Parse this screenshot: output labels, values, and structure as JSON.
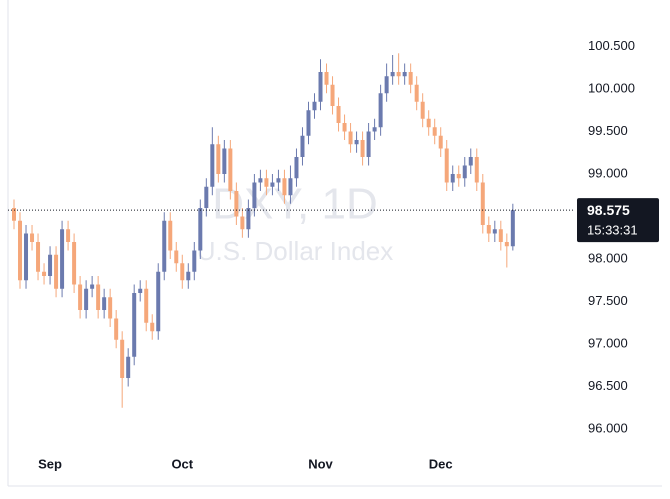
{
  "chart_data": {
    "type": "candlestick",
    "watermark_title": "DXY, 1D",
    "watermark_subtitle": "U.S. Dollar Index",
    "categories": [
      null,
      null,
      null,
      null,
      null,
      null,
      "Sep",
      null,
      null,
      null,
      null,
      null,
      null,
      null,
      null,
      null,
      null,
      null,
      null,
      null,
      null,
      null,
      null,
      null,
      null,
      null,
      null,
      null,
      "Oct",
      null,
      null,
      null,
      null,
      null,
      null,
      null,
      null,
      null,
      null,
      null,
      null,
      null,
      null,
      null,
      null,
      null,
      null,
      null,
      null,
      null,
      null,
      "Nov",
      null,
      null,
      null,
      null,
      null,
      null,
      null,
      null,
      null,
      null,
      null,
      null,
      null,
      null,
      null,
      null,
      null,
      null,
      null,
      "Dec",
      null,
      null,
      null,
      null,
      null,
      null,
      null,
      null,
      null,
      null,
      null,
      null
    ],
    "open": [
      98.6,
      98.45,
      97.75,
      98.3,
      98.2,
      97.85,
      97.8,
      98.05,
      97.65,
      98.35,
      98.2,
      97.7,
      97.4,
      97.65,
      97.7,
      97.4,
      97.55,
      97.3,
      97.05,
      96.6,
      96.85,
      97.6,
      97.65,
      97.25,
      97.15,
      97.85,
      98.45,
      98.1,
      97.95,
      97.75,
      97.85,
      98.1,
      98.6,
      98.85,
      99.35,
      99.0,
      99.3,
      98.8,
      98.5,
      98.35,
      98.6,
      98.9,
      98.95,
      98.85,
      98.9,
      98.95,
      98.75,
      98.95,
      99.2,
      99.45,
      99.75,
      99.85,
      100.2,
      100.05,
      99.8,
      99.6,
      99.5,
      99.35,
      99.4,
      99.2,
      99.5,
      99.55,
      99.95,
      100.15,
      100.2,
      100.15,
      100.2,
      100.05,
      99.85,
      99.65,
      99.55,
      99.45,
      99.3,
      98.9,
      99.0,
      98.95,
      99.1,
      99.2,
      98.9,
      98.4,
      98.3,
      98.35,
      98.2,
      98.15
    ],
    "high": [
      98.7,
      98.55,
      98.4,
      98.4,
      98.3,
      97.95,
      98.15,
      98.15,
      98.45,
      98.45,
      98.3,
      97.8,
      97.75,
      97.8,
      97.8,
      97.65,
      97.65,
      97.4,
      97.15,
      96.95,
      97.7,
      97.75,
      97.75,
      97.35,
      97.95,
      98.55,
      98.55,
      98.2,
      98.05,
      97.95,
      98.2,
      98.7,
      98.95,
      99.55,
      99.45,
      99.4,
      99.4,
      98.9,
      98.6,
      98.7,
      99.0,
      99.05,
      99.05,
      99.0,
      99.05,
      99.05,
      99.1,
      99.3,
      99.55,
      99.85,
      99.95,
      100.35,
      100.3,
      100.15,
      99.9,
      99.7,
      99.6,
      99.5,
      99.5,
      99.6,
      99.65,
      100.05,
      100.3,
      100.4,
      100.42,
      100.3,
      100.3,
      100.15,
      99.95,
      99.75,
      99.65,
      99.55,
      99.4,
      99.1,
      99.1,
      99.2,
      99.3,
      99.3,
      99.0,
      98.5,
      98.45,
      98.45,
      98.3,
      98.65
    ],
    "low": [
      98.35,
      97.65,
      97.65,
      98.1,
      97.75,
      97.7,
      97.7,
      97.55,
      97.55,
      98.1,
      97.6,
      97.3,
      97.3,
      97.55,
      97.3,
      97.3,
      97.2,
      96.95,
      96.25,
      96.5,
      96.75,
      97.5,
      97.15,
      97.05,
      97.05,
      97.75,
      98.0,
      97.85,
      97.65,
      97.65,
      97.75,
      98.0,
      98.5,
      98.75,
      98.9,
      98.9,
      98.7,
      98.4,
      98.25,
      98.25,
      98.5,
      98.8,
      98.75,
      98.75,
      98.8,
      98.65,
      98.65,
      98.85,
      99.1,
      99.35,
      99.65,
      99.75,
      99.95,
      99.7,
      99.5,
      99.4,
      99.25,
      99.25,
      99.1,
      99.1,
      99.4,
      99.45,
      99.85,
      100.05,
      100.05,
      100.05,
      99.95,
      99.75,
      99.55,
      99.45,
      99.35,
      99.2,
      98.8,
      98.8,
      98.85,
      98.85,
      99.0,
      98.8,
      98.3,
      98.2,
      98.2,
      98.1,
      97.9,
      98.1
    ],
    "close": [
      98.45,
      97.75,
      98.3,
      98.2,
      97.85,
      97.8,
      98.05,
      97.65,
      98.35,
      98.2,
      97.7,
      97.4,
      97.65,
      97.7,
      97.4,
      97.55,
      97.3,
      97.05,
      96.6,
      96.85,
      97.6,
      97.65,
      97.25,
      97.15,
      97.85,
      98.45,
      98.1,
      97.95,
      97.75,
      97.85,
      98.1,
      98.6,
      98.85,
      99.35,
      99.0,
      99.3,
      98.8,
      98.5,
      98.35,
      98.6,
      98.9,
      98.95,
      98.85,
      98.9,
      98.95,
      98.75,
      98.95,
      99.2,
      99.45,
      99.75,
      99.85,
      100.2,
      100.05,
      99.8,
      99.6,
      99.5,
      99.35,
      99.4,
      99.2,
      99.5,
      99.55,
      99.95,
      100.15,
      100.2,
      100.15,
      100.2,
      100.05,
      99.85,
      99.65,
      99.55,
      99.45,
      99.3,
      98.9,
      99.0,
      98.95,
      99.1,
      99.2,
      98.9,
      98.4,
      98.3,
      98.35,
      98.2,
      98.15,
      98.575
    ],
    "up_color": "#6b7aae",
    "down_color": "#f5a77a",
    "last_price": 98.575,
    "countdown": "15:33:31",
    "ylim": [
      95.753,
      101.047
    ],
    "yticks": [
      {
        "value": 96,
        "label": "96.000"
      },
      {
        "value": 96.5,
        "label": "96.500"
      },
      {
        "value": 97,
        "label": "97.000"
      },
      {
        "value": 97.5,
        "label": "97.500"
      },
      {
        "value": 98,
        "label": "98.000"
      },
      {
        "value": 99,
        "label": "99.000"
      },
      {
        "value": 99.5,
        "label": "99.500"
      },
      {
        "value": 100,
        "label": "100.000"
      },
      {
        "value": 100.5,
        "label": "100.500"
      }
    ]
  }
}
